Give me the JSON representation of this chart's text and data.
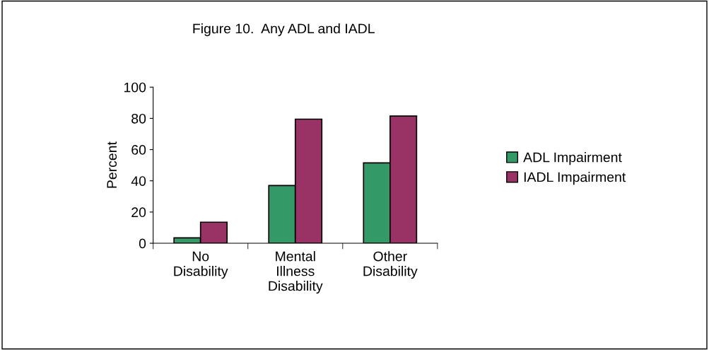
{
  "chart_data": {
    "type": "bar",
    "title": "Figure 10.  Any ADL and IADL",
    "ylabel": "Percent",
    "categories": [
      "No\nDisability",
      "Mental\nIllness\nDisability",
      "Other\nDisability"
    ],
    "series": [
      {
        "name": "ADL Impairment",
        "color": "#339966",
        "values": [
          3.5,
          37,
          51.5
        ]
      },
      {
        "name": "IADL Impairment",
        "color": "#993366",
        "values": [
          13.5,
          79.5,
          81.5
        ]
      }
    ],
    "ylim": [
      0,
      100
    ],
    "yticks": [
      0,
      20,
      40,
      60,
      80,
      100
    ],
    "grid": false,
    "legend": "right"
  }
}
